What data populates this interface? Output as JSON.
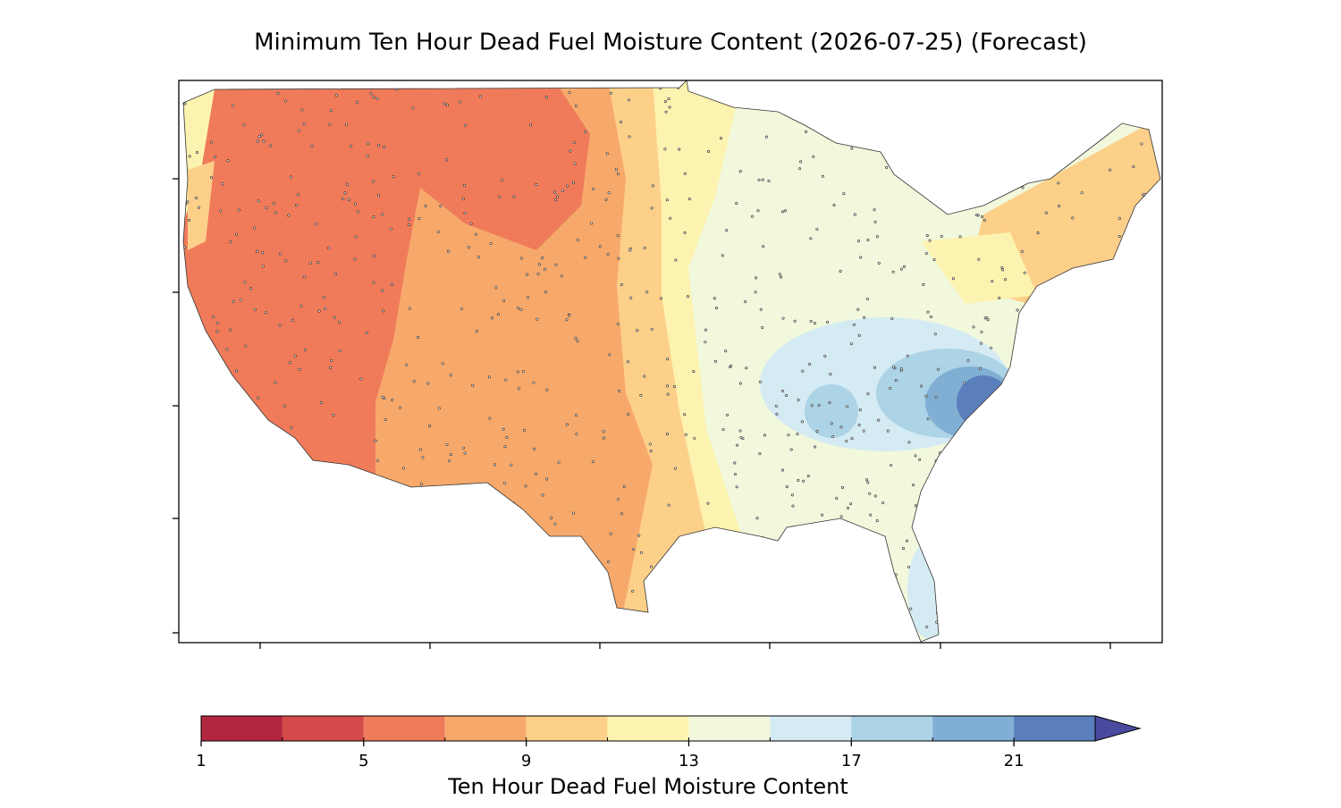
{
  "title": "Minimum Ten Hour Dead Fuel Moisture Content (2026-07-25) (Forecast)",
  "colorbar": {
    "label": "Ten Hour Dead Fuel Moisture Content",
    "bounds": [
      1,
      3,
      5,
      7,
      9,
      11,
      13,
      15,
      17,
      19,
      21,
      23
    ],
    "colors": [
      "#b22640",
      "#d44a4a",
      "#ef7b5b",
      "#f7a96b",
      "#fdd08a",
      "#fdf3b0",
      "#f1f8dc",
      "#d5ebf3",
      "#acd3e6",
      "#80afd3",
      "#5b7fbd"
    ],
    "extend_color": "#4a4a9e",
    "ticks": [
      1,
      5,
      9,
      13,
      17,
      21
    ]
  }
}
